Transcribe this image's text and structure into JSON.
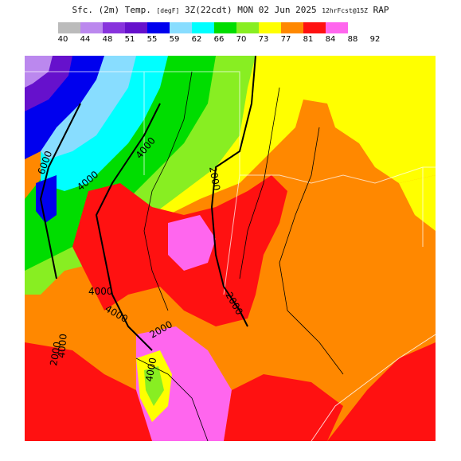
{
  "title": {
    "main": "Sfc. (2m) Temp.",
    "units": "[degF]",
    "valid": "3Z(22cdt) MON 02 Jun 2025",
    "forecast": "12hrFcst@15Z",
    "model": "RAP"
  },
  "legend": {
    "colors": [
      "#bbbbbb",
      "#bb88ee",
      "#8833dd",
      "#6611cc",
      "#0000ee",
      "#88ddff",
      "#00ffff",
      "#00dd00",
      "#88ee22",
      "#ffff00",
      "#ff8800",
      "#ff1111",
      "#ff66ee"
    ],
    "labels": [
      "40",
      "44",
      "48",
      "51",
      "55",
      "59",
      "62",
      "66",
      "70",
      "73",
      "77",
      "81",
      "84",
      "88",
      "92"
    ]
  },
  "map": {
    "contour_labels": [
      "6000",
      "4000",
      "4000",
      "2000",
      "2000",
      "2000",
      "4000",
      "2000",
      "4000",
      "4000",
      "4000"
    ]
  }
}
